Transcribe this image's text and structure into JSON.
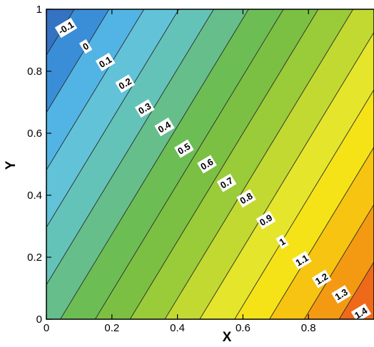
{
  "chart_data": {
    "type": "contour",
    "title": "",
    "xlabel": "X",
    "ylabel": "Y",
    "xlim": [
      0,
      1
    ],
    "ylim": [
      0,
      1
    ],
    "grid": false,
    "field": {
      "formula": "0.94*x - 0.54*y + 0.46",
      "min": -0.2,
      "max": 1.5
    },
    "x_ticks": [
      {
        "value": 0,
        "label": "0"
      },
      {
        "value": 0.2,
        "label": "0.2"
      },
      {
        "value": 0.4,
        "label": "0.4"
      },
      {
        "value": 0.6,
        "label": "0.6"
      },
      {
        "value": 0.8,
        "label": "0.8"
      }
    ],
    "y_ticks": [
      {
        "value": 0,
        "label": "0"
      },
      {
        "value": 0.2,
        "label": "0.2"
      },
      {
        "value": 0.4,
        "label": "0.4"
      },
      {
        "value": 0.6,
        "label": "0.6"
      },
      {
        "value": 0.8,
        "label": "0.8"
      },
      {
        "value": 1,
        "label": "1"
      }
    ],
    "levels": [
      -0.1,
      0,
      0.1,
      0.2,
      0.3,
      0.4,
      0.5,
      0.6,
      0.7,
      0.8,
      0.9,
      1,
      1.1,
      1.2,
      1.3,
      1.4
    ],
    "contour_labels": [
      {
        "text": "-0.1",
        "x": 0.06,
        "y": 0.94
      },
      {
        "text": "0",
        "x": 0.12,
        "y": 0.88
      },
      {
        "text": "0.1",
        "x": 0.18,
        "y": 0.83
      },
      {
        "text": "0.2",
        "x": 0.24,
        "y": 0.76
      },
      {
        "text": "0.3",
        "x": 0.3,
        "y": 0.68
      },
      {
        "text": "0.4",
        "x": 0.36,
        "y": 0.62
      },
      {
        "text": "0.5",
        "x": 0.42,
        "y": 0.55
      },
      {
        "text": "0.6",
        "x": 0.49,
        "y": 0.5
      },
      {
        "text": "0.7",
        "x": 0.55,
        "y": 0.44
      },
      {
        "text": "0.8",
        "x": 0.61,
        "y": 0.39
      },
      {
        "text": "0.9",
        "x": 0.67,
        "y": 0.32
      },
      {
        "text": "1",
        "x": 0.72,
        "y": 0.25
      },
      {
        "text": "1.1",
        "x": 0.78,
        "y": 0.19
      },
      {
        "text": "1.2",
        "x": 0.84,
        "y": 0.13
      },
      {
        "text": "1.3",
        "x": 0.9,
        "y": 0.08
      },
      {
        "text": "1.4",
        "x": 0.96,
        "y": 0.02
      }
    ],
    "colorscale": [
      {
        "v": -0.2,
        "color": "#2c4a9e"
      },
      {
        "v": 0.05,
        "color": "#3a8ed8"
      },
      {
        "v": 0.15,
        "color": "#52b4e4"
      },
      {
        "v": 0.25,
        "color": "#61c2d8"
      },
      {
        "v": 0.35,
        "color": "#64c3b8"
      },
      {
        "v": 0.45,
        "color": "#66be8a"
      },
      {
        "v": 0.55,
        "color": "#6dbd55"
      },
      {
        "v": 0.65,
        "color": "#7bc043"
      },
      {
        "v": 0.75,
        "color": "#9acb38"
      },
      {
        "v": 0.85,
        "color": "#c2d931"
      },
      {
        "v": 0.95,
        "color": "#e5e52b"
      },
      {
        "v": 1.05,
        "color": "#f5e318"
      },
      {
        "v": 1.15,
        "color": "#f6c411"
      },
      {
        "v": 1.25,
        "color": "#f49a12"
      },
      {
        "v": 1.35,
        "color": "#ee6a1a"
      },
      {
        "v": 1.5,
        "color": "#e02a1c"
      }
    ]
  }
}
